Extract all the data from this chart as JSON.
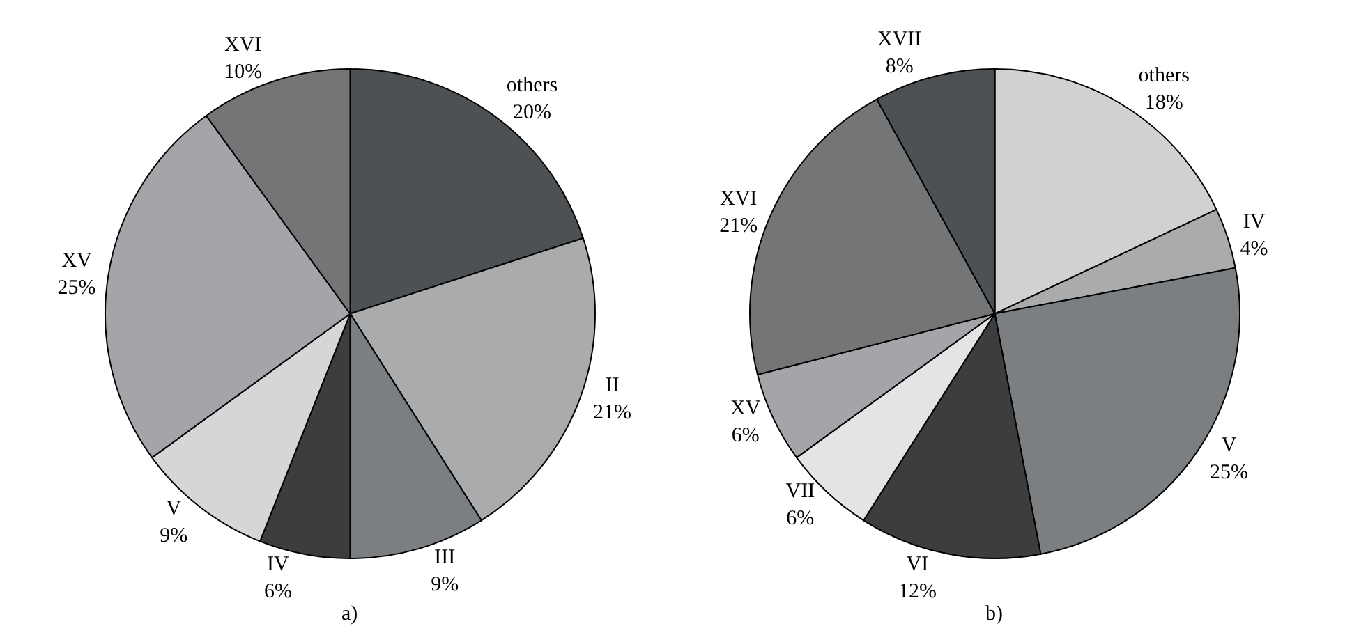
{
  "chart_data": [
    {
      "type": "pie",
      "title": "a)",
      "categories": [
        "others",
        "II",
        "III",
        "IV",
        "V",
        "XV",
        "XVI"
      ],
      "values": [
        20,
        21,
        9,
        6,
        9,
        25,
        10
      ],
      "value_labels": [
        "20%",
        "21%",
        "9%",
        "6%",
        "9%",
        "25%",
        "10%"
      ],
      "colors": [
        "#4d5154",
        "#a9abad",
        "#7c7f82",
        "#3d3d3d",
        "#d5d6d7",
        "#a3a5a8",
        "#737577"
      ],
      "legend": false
    },
    {
      "type": "pie",
      "title": "b)",
      "categories": [
        "others",
        "IV",
        "V",
        "VI",
        "VII",
        "XV",
        "XVI",
        "XVII"
      ],
      "values": [
        18,
        4,
        25,
        12,
        6,
        6,
        21,
        8
      ],
      "value_labels": [
        "18%",
        "4%",
        "25%",
        "12%",
        "6%",
        "6%",
        "21%",
        "8%"
      ],
      "colors": [
        "#d0d1d2",
        "#a9abad",
        "#7c7f82",
        "#3d3d3d",
        "#e3e4e5",
        "#a3a5a8",
        "#737577",
        "#4d5154"
      ],
      "legend": false
    }
  ]
}
